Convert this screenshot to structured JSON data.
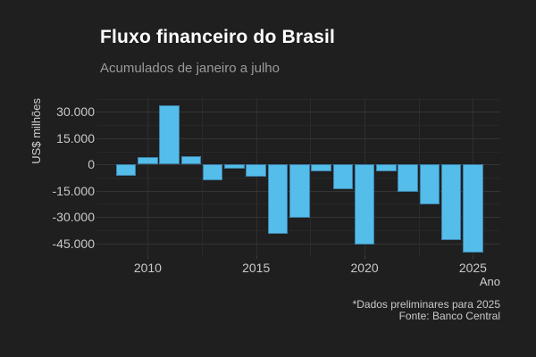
{
  "chart_data": {
    "type": "bar",
    "title": "Fluxo financeiro do Brasil",
    "subtitle": "Acumulados de janeiro a julho",
    "xlabel": "Ano",
    "ylabel": "US$ milhões",
    "categories": [
      2009,
      2010,
      2011,
      2012,
      2013,
      2014,
      2015,
      2016,
      2017,
      2018,
      2019,
      2020,
      2021,
      2022,
      2023,
      2024,
      2025
    ],
    "values": [
      -6500,
      4200,
      34000,
      4700,
      -9200,
      -2400,
      -7100,
      -39600,
      -30500,
      -4100,
      -13900,
      -45700,
      -4100,
      -15600,
      -22900,
      -43100,
      -50300
    ],
    "ylim": [
      -52300,
      37900
    ],
    "yticks_major": [
      30000,
      15000,
      0,
      -15000,
      -30000,
      -45000
    ],
    "ytick_labels": [
      "30.000",
      "15.000",
      "0",
      "-15.000",
      "-30.000",
      "-45.000"
    ],
    "yticks_minor": [
      37500,
      22500,
      7500,
      -7500,
      -22500,
      -37500
    ],
    "xticks_major": [
      2010,
      2015,
      2020,
      2025
    ],
    "xtick_labels": [
      "2010",
      "2015",
      "2020",
      "2025"
    ],
    "xticks_minor": [
      2012.5,
      2017.5,
      2022.5
    ],
    "grid": "major+minor",
    "legend": "none",
    "bar_color": "#55bde9",
    "bar_border_color": "#3c80a8"
  },
  "footer": {
    "note": "*Dados preliminares para 2025",
    "source": "Fonte: Banco Central"
  },
  "colors": {
    "background": "#1f1f1f",
    "title_text": "#ffffff",
    "subtitle_text": "#9a9a9a",
    "tick_text": "#c9c9c9",
    "axis_title_text": "#cfcfcf",
    "grid_major_h": "#343434",
    "grid_minor_h": "#272727",
    "grid_major_v": "#2e2e2e",
    "grid_minor_v": "#2a2a2a",
    "tick_mark": "#3c3c3c"
  }
}
